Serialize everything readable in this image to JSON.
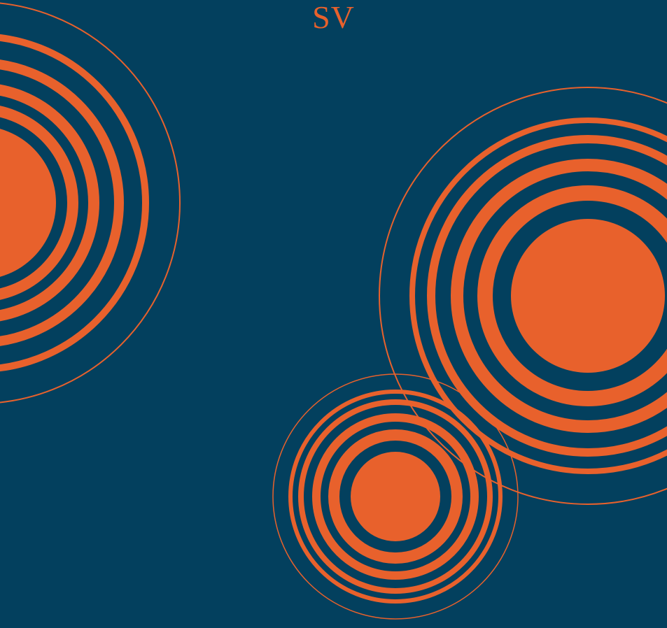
{
  "page": {
    "monogram": "SV",
    "colors": {
      "background": "#03405e",
      "accent": "#e8612c"
    }
  },
  "graphics": {
    "motif": "concentric-rings",
    "groups": [
      {
        "name": "left-ring-group"
      },
      {
        "name": "right-ring-group"
      },
      {
        "name": "bottom-ring-group"
      }
    ]
  }
}
